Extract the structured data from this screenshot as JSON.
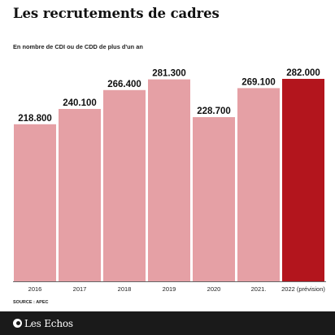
{
  "header": {
    "title": "Les recrutements de cadres",
    "subtitle": "En nombre de CDI ou de CDD de plus d'un an"
  },
  "chart_data": {
    "type": "bar",
    "categories": [
      "2016",
      "2017",
      "2018",
      "2019",
      "2020",
      "2021.",
      "2022 (prévision)"
    ],
    "values": [
      218800,
      240100,
      266400,
      281300,
      228700,
      269100,
      282000
    ],
    "value_labels": [
      "218.800",
      "240.100",
      "266.400",
      "281.300",
      "228.700",
      "269.100",
      "282.000"
    ],
    "title": "Les recrutements de cadres",
    "ylim": [
      0,
      282000
    ],
    "grid": false,
    "axis_line": true,
    "colors": {
      "actual": "#e5a0a5",
      "forecast": "#b3151d"
    },
    "highlight_index": 6
  },
  "source": "SOURCE : APEC",
  "footer": {
    "brand": "Les Echos",
    "background": "#1a1a1a"
  }
}
